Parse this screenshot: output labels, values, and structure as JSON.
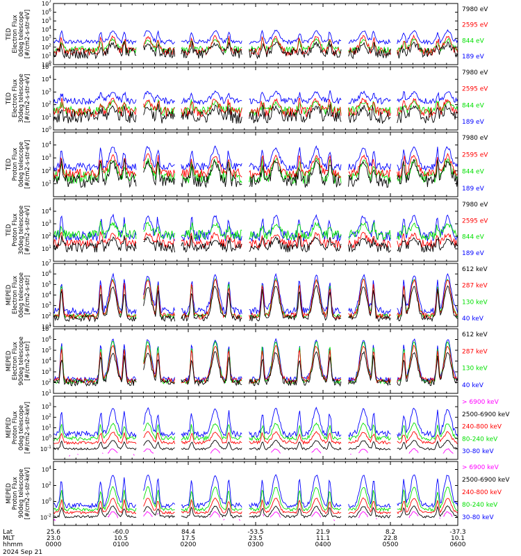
{
  "colors": {
    "blue": "#0000ff",
    "red": "#ff0000",
    "green": "#00e000",
    "black": "#000000",
    "magenta": "#ff00ff"
  },
  "x_axis": {
    "row_labels": [
      "Lat",
      "MLT",
      "hhmm"
    ],
    "ticks": [
      {
        "hhmm": "0000",
        "lat": "25.6",
        "mlt": "23.0"
      },
      {
        "hhmm": "0100",
        "lat": "-60.0",
        "mlt": "10.5"
      },
      {
        "hhmm": "0200",
        "lat": "84.4",
        "mlt": "17.5"
      },
      {
        "hhmm": "0300",
        "lat": "-53.5",
        "mlt": "23.5"
      },
      {
        "hhmm": "0400",
        "lat": "21.9",
        "mlt": "11.1"
      },
      {
        "hhmm": "0500",
        "lat": "8.2",
        "mlt": "22.8"
      },
      {
        "hhmm": "0600",
        "lat": "-37.3",
        "mlt": "10.1"
      }
    ],
    "date": "2024 Sep 21"
  },
  "chart_data": [
    {
      "type": "line",
      "log_y": true,
      "ylim_exp": [
        0,
        7
      ],
      "tick_exps": [
        0,
        1,
        2,
        3,
        4,
        5,
        6,
        7
      ],
      "ylabel_lines": [
        "TED",
        "Electron Flux",
        "0deg telescope",
        "[#/cm2-s-str-eV]"
      ],
      "series": [
        {
          "name": "7980 eV",
          "color": "black",
          "base": 1.3,
          "noise": 1.2,
          "peak": 2.4
        },
        {
          "name": "2595 eV",
          "color": "red",
          "base": 1.5,
          "noise": 0.9,
          "peak": 3.2
        },
        {
          "name": "844 eV",
          "color": "green",
          "base": 1.7,
          "noise": 0.8,
          "peak": 2.9
        },
        {
          "name": "189 eV",
          "color": "blue",
          "base": 2.6,
          "noise": 0.5,
          "peak": 3.9
        }
      ],
      "legend_colors": [
        "black",
        "red",
        "green",
        "blue"
      ]
    },
    {
      "type": "line",
      "log_y": true,
      "ylim_exp": [
        0,
        5
      ],
      "tick_exps": [
        0,
        1,
        2,
        3,
        4,
        5
      ],
      "ylabel_lines": [
        "TED",
        "Electron Flux",
        "30deg telescope",
        "[#/cm2-s-str-eV]"
      ],
      "series": [
        {
          "name": "7980 eV",
          "color": "black",
          "base": 1.0,
          "noise": 1.0,
          "peak": 1.8
        },
        {
          "name": "2595 eV",
          "color": "red",
          "base": 1.4,
          "noise": 0.8,
          "peak": 2.4
        },
        {
          "name": "844 eV",
          "color": "green",
          "base": 1.5,
          "noise": 0.7,
          "peak": 2.2
        },
        {
          "name": "189 eV",
          "color": "blue",
          "base": 2.3,
          "noise": 0.5,
          "peak": 3.0
        }
      ],
      "legend_colors": [
        "black",
        "red",
        "green",
        "blue"
      ]
    },
    {
      "type": "line",
      "log_y": true,
      "ylim_exp": [
        0,
        5
      ],
      "tick_exps": [
        1,
        2,
        3,
        4
      ],
      "ylabel_lines": [
        "TED",
        "Proton Flux",
        "0deg telescope",
        "[#/cm2-s-str-eV]"
      ],
      "series": [
        {
          "name": "7980 eV",
          "color": "black",
          "base": 1.2,
          "noise": 1.0,
          "peak": 2.7
        },
        {
          "name": "2595 eV",
          "color": "red",
          "base": 1.8,
          "noise": 0.7,
          "peak": 3.2
        },
        {
          "name": "844 eV",
          "color": "green",
          "base": 1.5,
          "noise": 1.0,
          "peak": 2.8
        },
        {
          "name": "189 eV",
          "color": "blue",
          "base": 2.3,
          "noise": 0.6,
          "peak": 3.8
        }
      ],
      "legend_colors": [
        "black",
        "red",
        "green",
        "blue"
      ]
    },
    {
      "type": "line",
      "log_y": true,
      "ylim_exp": [
        0,
        5
      ],
      "tick_exps": [
        1,
        2,
        3,
        4
      ],
      "ylabel_lines": [
        "TED",
        "Proton Flux",
        "30deg telescope",
        "[#/cm2-s-str-eV]"
      ],
      "series": [
        {
          "name": "7980 eV",
          "color": "black",
          "base": 1.1,
          "noise": 0.8,
          "peak": 1.8
        },
        {
          "name": "2595 eV",
          "color": "red",
          "base": 1.4,
          "noise": 0.7,
          "peak": 2.2
        },
        {
          "name": "844 eV",
          "color": "green",
          "base": 2.1,
          "noise": 0.8,
          "peak": 3.0
        },
        {
          "name": "189 eV",
          "color": "blue",
          "base": 2.0,
          "noise": 0.8,
          "peak": 3.6
        }
      ],
      "legend_colors": [
        "black",
        "red",
        "green",
        "blue"
      ]
    },
    {
      "type": "line",
      "log_y": true,
      "ylim_exp": [
        1,
        7
      ],
      "tick_exps": [
        1,
        2,
        3,
        4,
        5,
        6,
        7
      ],
      "ylabel_lines": [
        "MEPED",
        "Electron Flux",
        "0deg telescope",
        "[#/cm2-s-str]"
      ],
      "series": [
        {
          "name": "612 keV",
          "color": "black",
          "base": 1.8,
          "noise": 0.6,
          "peak": 4.8
        },
        {
          "name": "287 keV",
          "color": "red",
          "base": 2.0,
          "noise": 0.6,
          "peak": 5.4
        },
        {
          "name": "130 keV",
          "color": "green",
          "base": 2.0,
          "noise": 0.4,
          "peak": 5.5
        },
        {
          "name": "40 keV",
          "color": "blue",
          "base": 2.5,
          "noise": 0.7,
          "peak": 5.9
        }
      ],
      "legend_colors": [
        "black",
        "red",
        "green",
        "blue"
      ]
    },
    {
      "type": "line",
      "log_y": true,
      "ylim_exp": [
        1,
        7
      ],
      "tick_exps": [
        1,
        2,
        3,
        4,
        5,
        6,
        7
      ],
      "ylabel_lines": [
        "MEPED",
        "Electron Flux",
        "90deg telescope",
        "[#/cm2-s-str]"
      ],
      "series": [
        {
          "name": "612 keV",
          "color": "black",
          "base": 2.0,
          "noise": 0.6,
          "peak": 4.8
        },
        {
          "name": "287 keV",
          "color": "red",
          "base": 2.2,
          "noise": 0.5,
          "peak": 5.4
        },
        {
          "name": "130 keV",
          "color": "green",
          "base": 2.1,
          "noise": 0.4,
          "peak": 5.8
        },
        {
          "name": "40 keV",
          "color": "blue",
          "base": 2.3,
          "noise": 0.5,
          "peak": 6.0
        }
      ],
      "legend_colors": [
        "black",
        "red",
        "green",
        "blue"
      ]
    },
    {
      "type": "line",
      "log_y": true,
      "ylim_exp": [
        -2,
        4
      ],
      "tick_exps": [
        -1,
        0,
        1,
        2,
        3
      ],
      "ylabel_lines": [
        "MEPED",
        "Proton Flux",
        "0deg telescope",
        "[#/cm2-s-str-keV]"
      ],
      "series": [
        {
          "name": "> 6900 keV",
          "color": "magenta",
          "base": -1.6,
          "noise": 0.2,
          "peak": -1.0
        },
        {
          "name": "2500-6900 keV",
          "color": "black",
          "base": -1.0,
          "noise": 0.2,
          "peak": -0.2
        },
        {
          "name": "240-800 keV",
          "color": "red",
          "base": -0.4,
          "noise": 0.3,
          "peak": 0.6
        },
        {
          "name": "80-240 keV",
          "color": "green",
          "base": 0.0,
          "noise": 0.4,
          "peak": 1.4
        },
        {
          "name": "30-80 keV",
          "color": "blue",
          "base": 0.4,
          "noise": 0.6,
          "peak": 2.8
        }
      ],
      "legend_colors": [
        "magenta",
        "black",
        "red",
        "green",
        "blue"
      ]
    },
    {
      "type": "line",
      "log_y": true,
      "ylim_exp": [
        -3,
        5
      ],
      "tick_exps": [
        -2,
        0,
        2,
        4
      ],
      "ylabel_lines": [
        "MEPED",
        "Proton Flux",
        "90deg telescope",
        "[#/cm2-s-str-keV]"
      ],
      "series": [
        {
          "name": "> 6900 keV",
          "color": "magenta",
          "base": -2.3,
          "noise": 0.3,
          "peak": -1.3
        },
        {
          "name": "2500-6900 keV",
          "color": "black",
          "base": -1.9,
          "noise": 0.3,
          "peak": -0.6
        },
        {
          "name": "240-800 keV",
          "color": "red",
          "base": -1.4,
          "noise": 0.3,
          "peak": 0.4
        },
        {
          "name": "80-240 keV",
          "color": "green",
          "base": -1.0,
          "noise": 0.4,
          "peak": 1.8
        },
        {
          "name": "30-80 keV",
          "color": "blue",
          "base": -0.5,
          "noise": 0.6,
          "peak": 3.3
        }
      ],
      "legend_colors": [
        "magenta",
        "black",
        "red",
        "green",
        "blue"
      ]
    }
  ]
}
